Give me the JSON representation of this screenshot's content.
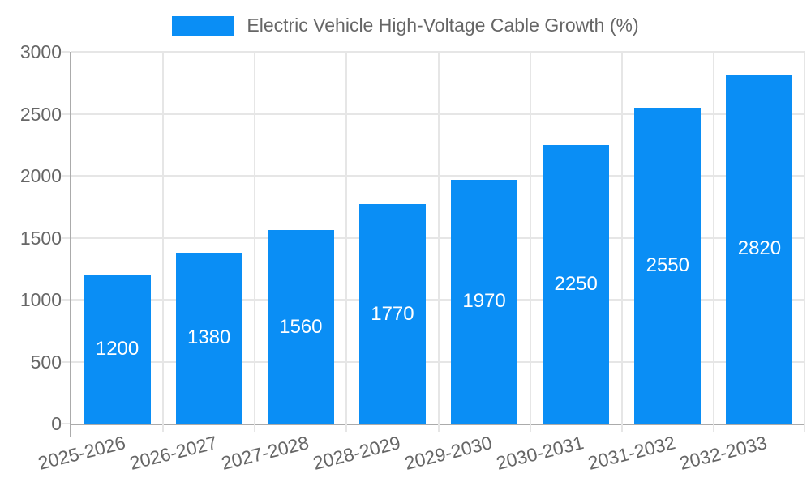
{
  "legend": {
    "label": "Electric Vehicle High-Voltage Cable Growth (%)"
  },
  "colors": {
    "bar": "#0a8ef5",
    "value_label": "#ffffff",
    "text": "#666666",
    "grid": "#e6e6e6",
    "axis": "#ababab"
  },
  "chart_data": {
    "type": "bar",
    "title": "Electric Vehicle High-Voltage Cable Growth (%)",
    "categories": [
      "2025-2026",
      "2026-2027",
      "2027-2028",
      "2028-2029",
      "2029-2030",
      "2030-2031",
      "2031-2032",
      "2032-2033"
    ],
    "values": [
      1200,
      1380,
      1560,
      1770,
      1970,
      2250,
      2550,
      2820
    ],
    "value_labels": [
      "1200",
      "1380",
      "1560",
      "1770",
      "1970",
      "2250",
      "2550",
      "2820"
    ],
    "xlabel": "",
    "ylabel": "",
    "ylim": [
      0,
      3000
    ],
    "yticks": [
      0,
      500,
      1000,
      1500,
      2000,
      2500,
      3000
    ],
    "grid": true,
    "legend_position": "top",
    "value_labels_inside_bars": true,
    "x_label_rotation_deg": -14
  }
}
